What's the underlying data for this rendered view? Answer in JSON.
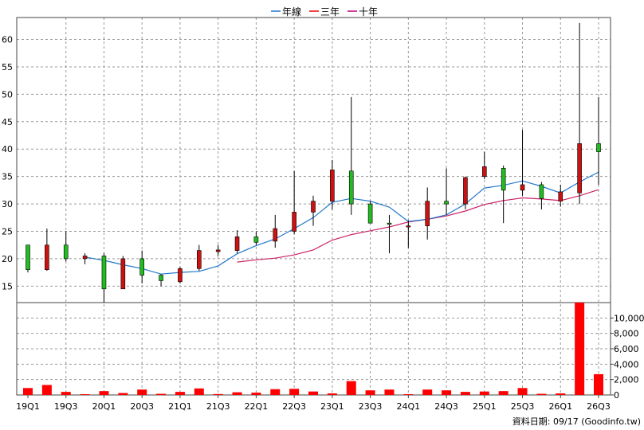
{
  "chart_data": {
    "type": "candlestick",
    "legend": [
      {
        "label": "年線",
        "color": "#2277cc"
      },
      {
        "label": "三年",
        "color": "#ee0000"
      },
      {
        "label": "十年",
        "color": "#bb0077"
      }
    ],
    "colors": {
      "up": "#cc1111",
      "down": "#22bb22",
      "volume": "#ff0000",
      "grid": "#999999",
      "year_line": "#2277cc",
      "three_year": "#cc2266"
    },
    "price_axis": {
      "min": 12,
      "max": 64,
      "ticks": [
        15,
        20,
        25,
        30,
        35,
        40,
        45,
        50,
        55,
        60
      ]
    },
    "volume_axis": {
      "min": 0,
      "max": 12000,
      "ticks": [
        0,
        2000,
        4000,
        6000,
        8000,
        10000
      ],
      "tick_labels": [
        "0",
        "2,000",
        "4,000",
        "6,000",
        "8,000",
        "10,000"
      ]
    },
    "x_tick_labels": [
      "19Q1",
      "19Q3",
      "20Q1",
      "20Q3",
      "21Q1",
      "21Q3",
      "22Q1",
      "22Q3",
      "23Q1",
      "23Q3",
      "24Q1",
      "24Q3",
      "25Q1",
      "25Q3",
      "26Q1",
      "26Q3"
    ],
    "candles": [
      {
        "o": 22.5,
        "h": 22.5,
        "l": 17.5,
        "c": 18.0,
        "v": 900
      },
      {
        "o": 18.0,
        "h": 25.5,
        "l": 17.8,
        "c": 22.5,
        "v": 1300
      },
      {
        "o": 22.5,
        "h": 25.0,
        "l": 19.5,
        "c": 20.0,
        "v": 400
      },
      {
        "o": 20.0,
        "h": 21.0,
        "l": 19.0,
        "c": 20.5,
        "v": 100
      },
      {
        "o": 20.5,
        "h": 21.0,
        "l": 12.0,
        "c": 14.5,
        "v": 500
      },
      {
        "o": 14.5,
        "h": 20.5,
        "l": 14.5,
        "c": 20.0,
        "v": 250
      },
      {
        "o": 20.0,
        "h": 21.5,
        "l": 15.5,
        "c": 17.0,
        "v": 700
      },
      {
        "o": 17.0,
        "h": 17.2,
        "l": 15.0,
        "c": 16.0,
        "v": 150
      },
      {
        "o": 15.8,
        "h": 18.5,
        "l": 15.5,
        "c": 18.2,
        "v": 400
      },
      {
        "o": 18.2,
        "h": 22.5,
        "l": 17.8,
        "c": 21.5,
        "v": 850
      },
      {
        "o": 21.3,
        "h": 22.5,
        "l": 20.5,
        "c": 21.6,
        "v": 120
      },
      {
        "o": 21.5,
        "h": 25.2,
        "l": 21.0,
        "c": 24.0,
        "v": 350
      },
      {
        "o": 24.0,
        "h": 25.0,
        "l": 22.5,
        "c": 23.0,
        "v": 300
      },
      {
        "o": 23.2,
        "h": 28.0,
        "l": 22.0,
        "c": 25.5,
        "v": 750
      },
      {
        "o": 25.0,
        "h": 36.0,
        "l": 24.5,
        "c": 28.5,
        "v": 800
      },
      {
        "o": 28.5,
        "h": 31.5,
        "l": 26.0,
        "c": 30.5,
        "v": 450
      },
      {
        "o": 30.5,
        "h": 38.0,
        "l": 29.0,
        "c": 36.2,
        "v": 200
      },
      {
        "o": 36.0,
        "h": 49.5,
        "l": 28.0,
        "c": 30.0,
        "v": 1800
      },
      {
        "o": 30.0,
        "h": 30.5,
        "l": 26.5,
        "c": 26.5,
        "v": 600
      },
      {
        "o": 26.5,
        "h": 28.0,
        "l": 21.0,
        "c": 26.3,
        "v": 700
      },
      {
        "o": 25.8,
        "h": 27.0,
        "l": 22.0,
        "c": 26.0,
        "v": 100
      },
      {
        "o": 26.0,
        "h": 33.0,
        "l": 23.5,
        "c": 30.5,
        "v": 700
      },
      {
        "o": 30.5,
        "h": 36.5,
        "l": 28.0,
        "c": 30.0,
        "v": 600
      },
      {
        "o": 30.0,
        "h": 35.0,
        "l": 29.0,
        "c": 34.8,
        "v": 400
      },
      {
        "o": 35.0,
        "h": 39.5,
        "l": 34.5,
        "c": 36.8,
        "v": 450
      },
      {
        "o": 36.5,
        "h": 37.0,
        "l": 26.5,
        "c": 32.5,
        "v": 500
      },
      {
        "o": 32.5,
        "h": 43.5,
        "l": 31.5,
        "c": 33.5,
        "v": 900
      },
      {
        "o": 33.5,
        "h": 34.0,
        "l": 29.0,
        "c": 31.0,
        "v": 150
      },
      {
        "o": 30.5,
        "h": 33.5,
        "l": 29.5,
        "c": 32.2,
        "v": 200
      },
      {
        "o": 32.0,
        "h": 63.0,
        "l": 30.0,
        "c": 41.0,
        "v": 12000
      },
      {
        "o": 41.0,
        "h": 49.5,
        "l": 33.5,
        "c": 39.5,
        "v": 2700
      }
    ],
    "year_line": [
      null,
      null,
      null,
      20.3,
      19.7,
      18.9,
      18.2,
      17.2,
      17.5,
      17.7,
      18.7,
      20.9,
      22.4,
      23.6,
      25.5,
      27.5,
      30.3,
      31.0,
      30.5,
      29.4,
      26.8,
      27.2,
      28.0,
      30.0,
      32.9,
      33.4,
      34.2,
      33.2,
      32.0,
      34.0,
      35.8
    ],
    "three_year_line": [
      null,
      null,
      null,
      null,
      null,
      null,
      null,
      null,
      null,
      null,
      null,
      19.4,
      19.8,
      20.1,
      20.7,
      21.6,
      23.4,
      24.4,
      25.1,
      25.8,
      26.7,
      27.2,
      27.8,
      28.7,
      29.9,
      30.6,
      31.1,
      30.9,
      30.6,
      31.5,
      32.6
    ]
  },
  "footer": {
    "credit": "資料日期: 09/17   (Goodinfo.tw)"
  }
}
